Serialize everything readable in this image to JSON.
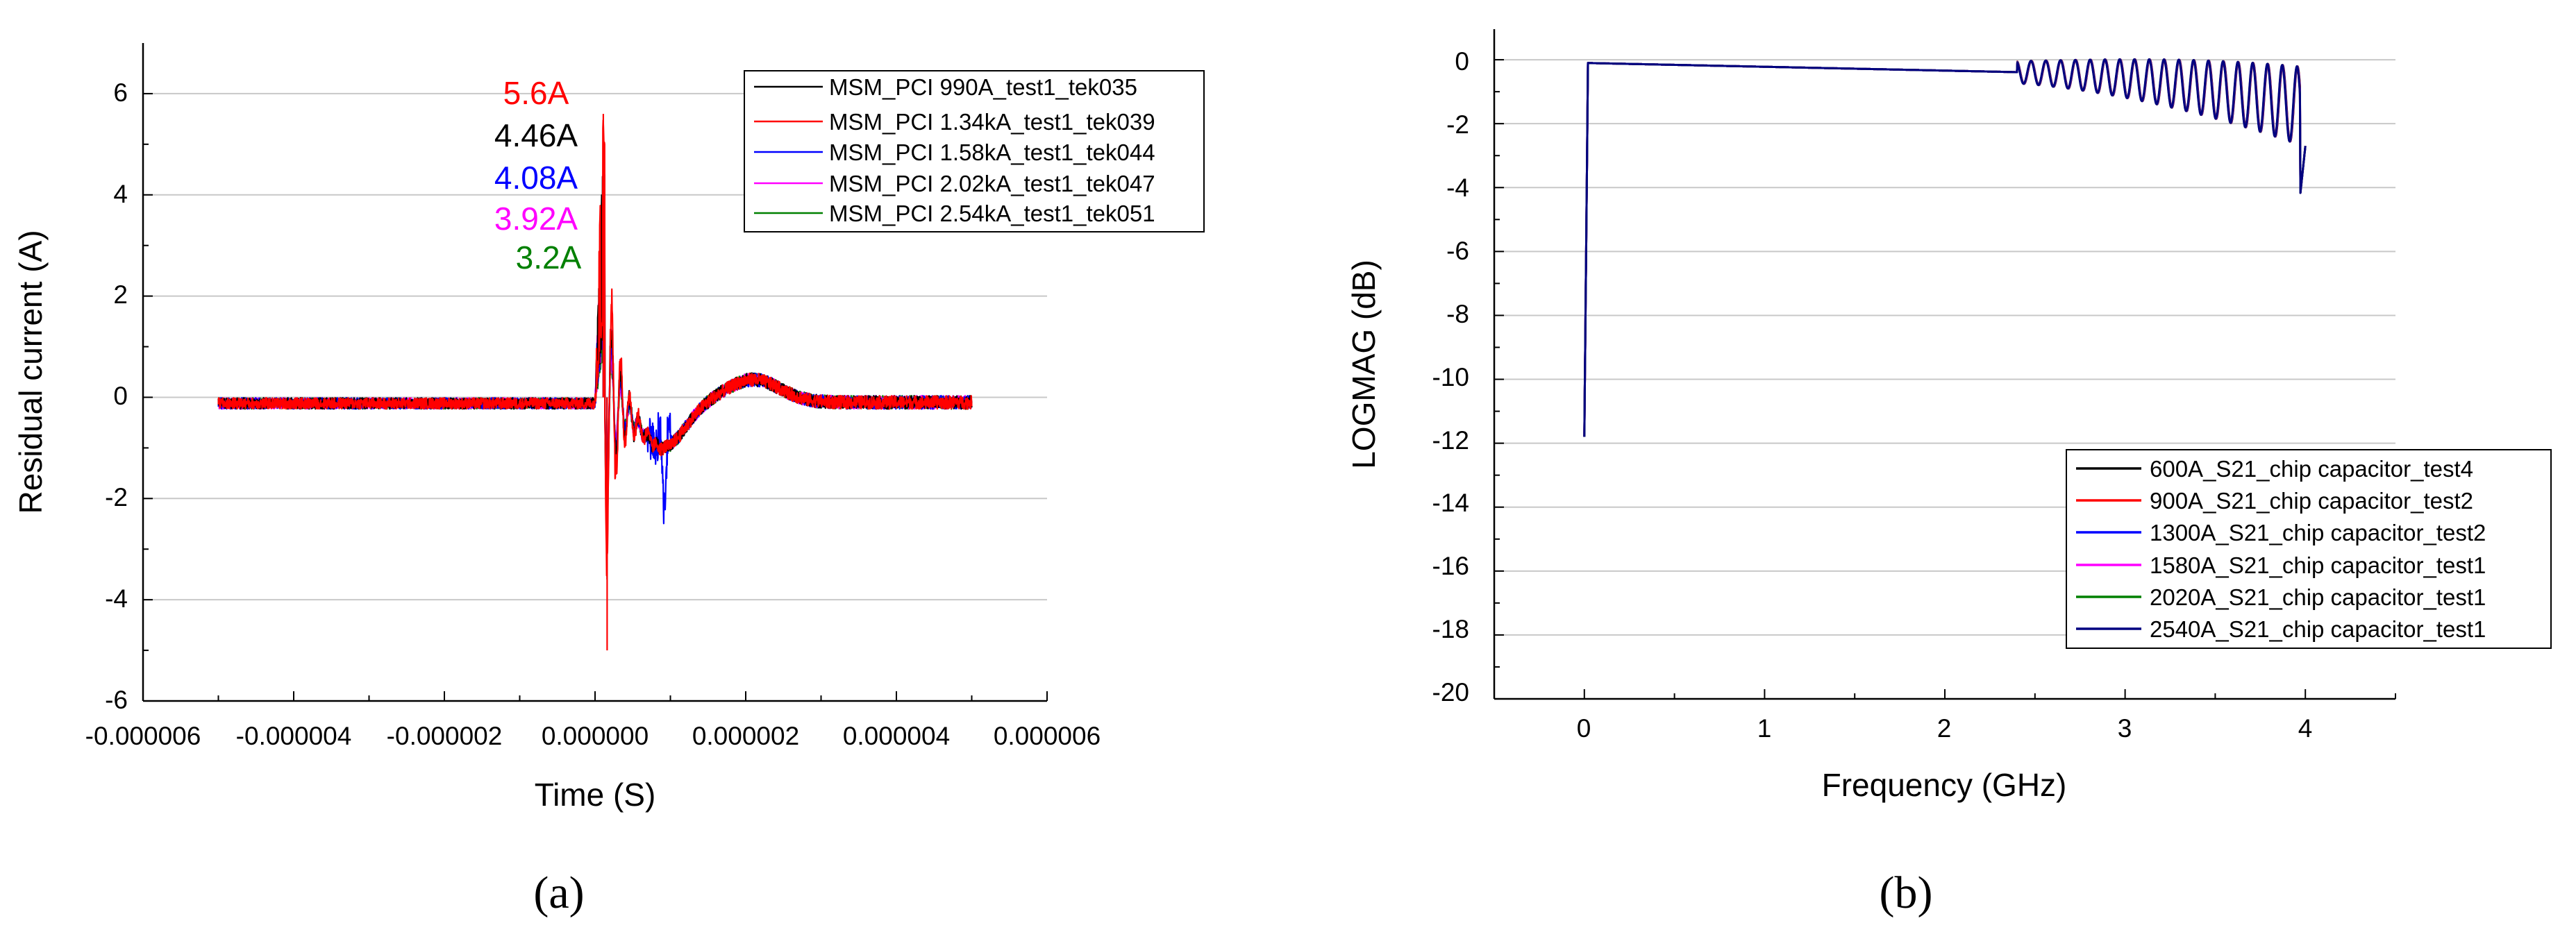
{
  "chart_data": [
    {
      "type": "line",
      "caption": "(a)",
      "xlabel": "Time (S)",
      "ylabel": "Residual current (A)",
      "xlim": [
        -6e-06,
        6e-06
      ],
      "ylim": [
        -6,
        7
      ],
      "xticks": [
        "-0.000006",
        "-0.000004",
        "-0.000002",
        "0.000000",
        "0.000002",
        "0.000004",
        "0.000006"
      ],
      "yticks": [
        "6",
        "4",
        "2",
        "0",
        "-2",
        "-4",
        "-6"
      ],
      "grid": "horizontal",
      "legend_position": "top-right",
      "annotations": [
        {
          "text": "5.6A",
          "color": "#ff0000"
        },
        {
          "text": "4.46A",
          "color": "#000000"
        },
        {
          "text": "4.08A",
          "color": "#0000ff"
        },
        {
          "text": "3.92A",
          "color": "#ff00ff"
        },
        {
          "text": "3.2A",
          "color": "#008000"
        }
      ],
      "series": [
        {
          "name": "MSM_PCI 990A_test1_tek035",
          "color": "#000000",
          "peak": 4.46,
          "trough": -3.6,
          "x": [
            -5e-06,
            -1e-06,
            0,
            1e-07,
            1.5e-07,
            2.5e-07,
            5e-07,
            8e-07,
            1e-06,
            1.5e-06,
            2e-06,
            3e-06,
            4e-06,
            5e-06
          ],
          "y": [
            -0.1,
            -0.1,
            -0.1,
            4.46,
            -3.6,
            1.2,
            -0.4,
            -0.9,
            -0.9,
            -0.3,
            0.4,
            0.1,
            -0.1,
            -0.1
          ]
        },
        {
          "name": "MSM_PCI 1.34kA_test1_tek039",
          "color": "#ff0000",
          "peak": 5.6,
          "trough": -5.0,
          "x": [
            -5e-06,
            -1e-06,
            0,
            1e-07,
            1.5e-07,
            2.5e-07,
            5e-07,
            8e-07,
            1e-06,
            1.5e-06,
            2e-06,
            3e-06,
            4e-06,
            5e-06
          ],
          "y": [
            -0.15,
            -0.1,
            -0.1,
            5.6,
            -5.0,
            1.4,
            -0.5,
            -1.0,
            -0.9,
            -0.2,
            0.4,
            0.0,
            -0.2,
            -0.1
          ]
        },
        {
          "name": "MSM_PCI 1.58kA_test1_tek044",
          "color": "#0000ff",
          "peak": 4.08,
          "trough": -2.2,
          "x": [
            -5e-06,
            -1e-06,
            0,
            1e-07,
            1.5e-07,
            2.5e-07,
            5e-07,
            8e-07,
            9e-07,
            1e-06,
            1.5e-06,
            2e-06,
            3e-06,
            4e-06,
            5e-06
          ],
          "y": [
            -0.1,
            -0.1,
            -0.1,
            4.08,
            -2.2,
            1.0,
            -0.3,
            -0.6,
            -2.1,
            -0.8,
            -0.3,
            0.4,
            0.1,
            -0.2,
            -0.1
          ]
        },
        {
          "name": "MSM_PCI 2.02kA_test1_tek047",
          "color": "#ff00ff",
          "peak": 3.92,
          "trough": -2.0,
          "x": [
            -5e-06,
            -1e-06,
            0,
            1e-07,
            1.5e-07,
            2.5e-07,
            5e-07,
            8e-07,
            1e-06,
            1.5e-06,
            2e-06,
            3e-06,
            4e-06,
            5e-06
          ],
          "y": [
            -0.1,
            -0.1,
            -0.1,
            3.92,
            -2.0,
            0.9,
            -0.4,
            -0.9,
            -0.9,
            -0.3,
            0.4,
            0.1,
            -0.1,
            -0.1
          ]
        },
        {
          "name": "MSM_PCI 2.54kA_test1_tek051",
          "color": "#008000",
          "peak": 3.2,
          "trough": -1.6,
          "x": [
            -5e-06,
            -1e-06,
            0,
            1e-07,
            1.5e-07,
            2.5e-07,
            5e-07,
            8e-07,
            1e-06,
            1.5e-06,
            2e-06,
            3e-06,
            4e-06,
            5e-06
          ],
          "y": [
            -0.1,
            -0.1,
            -0.1,
            3.2,
            -1.6,
            0.8,
            -0.4,
            -0.9,
            -0.9,
            -0.3,
            0.45,
            0.1,
            -0.1,
            -0.1
          ]
        }
      ]
    },
    {
      "type": "line",
      "caption": "(b)",
      "xlabel": "Frequency (GHz)",
      "ylabel": "LOGMAG (dB)",
      "xlim": [
        -0.5,
        4.5
      ],
      "ylim": [
        -20,
        1
      ],
      "xticks": [
        "0",
        "1",
        "2",
        "3",
        "4"
      ],
      "yticks": [
        "0",
        "-2",
        "-4",
        "-6",
        "-8",
        "-10",
        "-12",
        "-14",
        "-16",
        "-18",
        "-20"
      ],
      "grid": "horizontal",
      "legend_position": "bottom-right",
      "series": [
        {
          "name": "600A_S21_chip capacitor_test4",
          "color": "#000000"
        },
        {
          "name": "900A_S21_chip capacitor_test2",
          "color": "#ff0000"
        },
        {
          "name": "1300A_S21_chip capacitor_test2",
          "color": "#0000ff"
        },
        {
          "name": "1580A_S21_chip capacitor_test1",
          "color": "#ff00ff"
        },
        {
          "name": "2020A_S21_chip capacitor_test1",
          "color": "#008000"
        },
        {
          "name": "2540A_S21_chip capacitor_test1",
          "color": "#000080"
        }
      ],
      "x": [
        0.0,
        0.005,
        0.02,
        0.05,
        0.1,
        0.5,
        1.0,
        1.5,
        2.0,
        2.4,
        2.6,
        2.8,
        3.0,
        3.2,
        3.4,
        3.6,
        3.8,
        3.95,
        4.0
      ],
      "y": [
        -11.8,
        -1.5,
        -0.3,
        -0.15,
        -0.1,
        -0.2,
        -0.3,
        -0.35,
        -0.4,
        -0.5,
        -0.7,
        -1.0,
        -1.4,
        -1.9,
        -2.4,
        -3.0,
        -3.5,
        -4.3,
        -2.7
      ]
    }
  ]
}
